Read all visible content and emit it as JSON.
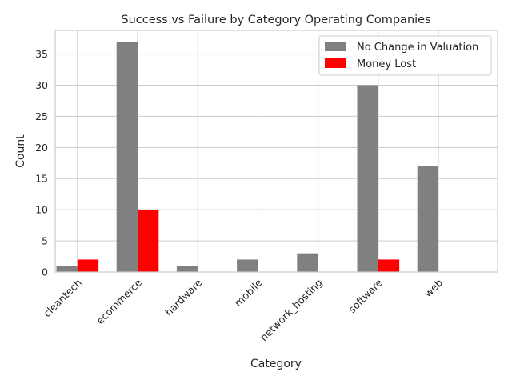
{
  "chart_data": {
    "type": "bar",
    "title": "Success vs Failure by Category Operating Companies",
    "xlabel": "Category",
    "ylabel": "Count",
    "categories": [
      "cleantech",
      "ecommerce",
      "hardware",
      "mobile",
      "network_hosting",
      "software",
      "web"
    ],
    "series": [
      {
        "name": "No Change in Valuation",
        "color": "#808080",
        "values": [
          1,
          37,
          1,
          2,
          3,
          30,
          17
        ]
      },
      {
        "name": "Money Lost",
        "color": "#ff0000",
        "values": [
          2,
          10,
          0,
          0,
          0,
          2,
          0
        ]
      }
    ],
    "ylim": [
      0,
      38.8
    ],
    "yticks": [
      0,
      5,
      10,
      15,
      20,
      25,
      30,
      35
    ],
    "grid": true,
    "legend_position": "top-right"
  }
}
